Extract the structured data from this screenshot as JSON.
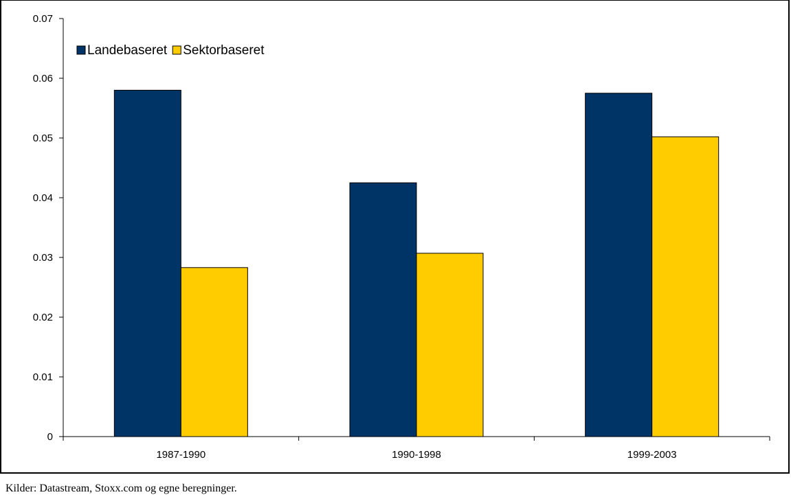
{
  "chart_data": {
    "type": "bar",
    "categories": [
      "1987-1990",
      "1990-1998",
      "1999-2003"
    ],
    "series": [
      {
        "name": "Landebaseret",
        "color": "#003366",
        "values": [
          0.058,
          0.0425,
          0.0575
        ]
      },
      {
        "name": "Sektorbaseret",
        "color": "#FFCC00",
        "values": [
          0.0283,
          0.0307,
          0.0502
        ]
      }
    ],
    "ylim": [
      0,
      0.07
    ],
    "yticks": [
      "0",
      "0.01",
      "0.02",
      "0.03",
      "0.04",
      "0.05",
      "0.06",
      "0.07"
    ],
    "grid": false,
    "legend_position": "top-left"
  },
  "source_note": "Kilder: Datastream, Stoxx.com og egne beregninger."
}
